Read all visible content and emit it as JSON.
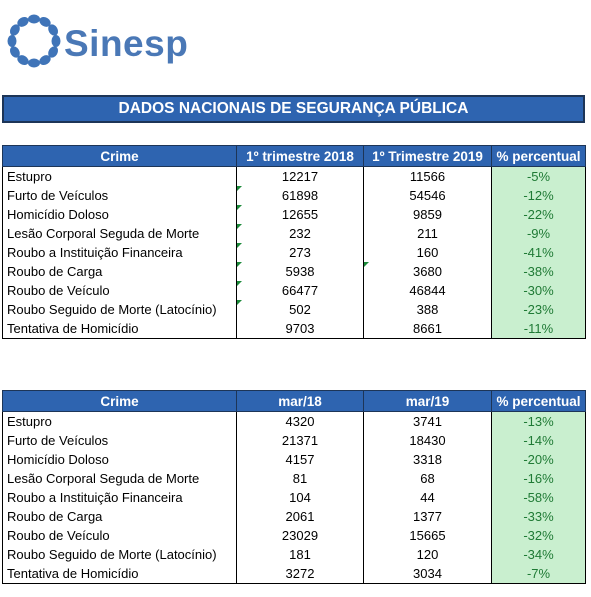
{
  "brand": {
    "name": "Sinesp",
    "icon": "sinesp-ring-logo-icon",
    "color": "#4a78b6"
  },
  "banner": {
    "title": "DADOS NACIONAIS DE SEGURANÇA PÚBLICA"
  },
  "colors": {
    "header_bg": "#2e64b0",
    "pct_bg": "#c9efcf",
    "pct_text": "#1f7a35"
  },
  "table1": {
    "headers": [
      "Crime",
      "1º trimestre 2018",
      "1º Trimestre 2019",
      "% percentual"
    ],
    "rows": [
      {
        "crime": "Estupro",
        "a": "12217",
        "b": "11566",
        "pct": "-5%"
      },
      {
        "crime": "Furto de Veículos",
        "a": "61898",
        "b": "54546",
        "pct": "-12%"
      },
      {
        "crime": "Homicídio Doloso",
        "a": "12655",
        "b": "9859",
        "pct": "-22%"
      },
      {
        "crime": "Lesão Corporal Seguda de Morte",
        "a": "232",
        "b": "211",
        "pct": "-9%"
      },
      {
        "crime": "Roubo a Instituição Financeira",
        "a": "273",
        "b": "160",
        "pct": "-41%"
      },
      {
        "crime": "Roubo de Carga",
        "a": "5938",
        "b": "3680",
        "pct": "-38%"
      },
      {
        "crime": "Roubo de Veículo",
        "a": "66477",
        "b": "46844",
        "pct": "-30%"
      },
      {
        "crime": "Roubo Seguido de Morte (Latocínio)",
        "a": "502",
        "b": "388",
        "pct": "-23%"
      },
      {
        "crime": "Tentativa de Homicídio",
        "a": "9703",
        "b": "8661",
        "pct": "-11%"
      }
    ]
  },
  "table2": {
    "headers": [
      "Crime",
      "mar/18",
      "mar/19",
      "% percentual"
    ],
    "rows": [
      {
        "crime": "Estupro",
        "a": "4320",
        "b": "3741",
        "pct": "-13%"
      },
      {
        "crime": "Furto de Veículos",
        "a": "21371",
        "b": "18430",
        "pct": "-14%"
      },
      {
        "crime": "Homicídio Doloso",
        "a": "4157",
        "b": "3318",
        "pct": "-20%"
      },
      {
        "crime": "Lesão Corporal Seguda de Morte",
        "a": "81",
        "b": "68",
        "pct": "-16%"
      },
      {
        "crime": "Roubo a Instituição Financeira",
        "a": "104",
        "b": "44",
        "pct": "-58%"
      },
      {
        "crime": "Roubo de Carga",
        "a": "2061",
        "b": "1377",
        "pct": "-33%"
      },
      {
        "crime": "Roubo de Veículo",
        "a": "23029",
        "b": "15665",
        "pct": "-32%"
      },
      {
        "crime": "Roubo Seguido de Morte (Latocínio)",
        "a": "181",
        "b": "120",
        "pct": "-34%"
      },
      {
        "crime": "Tentativa de Homicídio",
        "a": "3272",
        "b": "3034",
        "pct": "-7%"
      }
    ]
  }
}
